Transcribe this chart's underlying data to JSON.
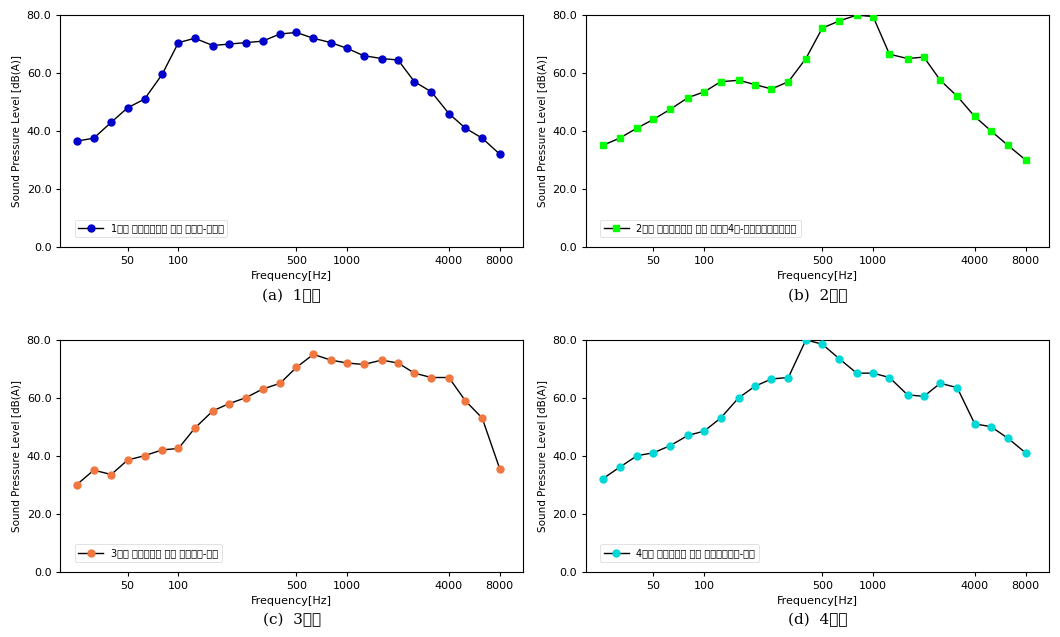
{
  "freq_labels": [
    25,
    31.5,
    40,
    50,
    63,
    80,
    100,
    125,
    160,
    200,
    250,
    315,
    400,
    500,
    630,
    800,
    1000,
    1250,
    1600,
    2000,
    2500,
    3150,
    4000,
    5000,
    6300,
    8000
  ],
  "plot1": {
    "color": "#0000cc",
    "marker": "o",
    "markersize": 5,
    "label": "1호선 비혼잡시간대 하행 청량리-제기동",
    "values": [
      36.5,
      37.5,
      43.0,
      48.0,
      51.0,
      59.5,
      70.5,
      72.0,
      69.5,
      70.0,
      70.5,
      71.0,
      73.5,
      74.0,
      72.0,
      70.5,
      68.5,
      66.0,
      65.0,
      64.5,
      57.0,
      53.5,
      46.0,
      41.0,
      37.5,
      32.0
    ],
    "subtitle": "(a)  1호선"
  },
  "plot2": {
    "color": "#00ff00",
    "marker": "s",
    "markersize": 5,
    "label": "2호선 비혼잡시간대 최선 을지로4가-동대문역사문화공원",
    "values": [
      35.0,
      37.5,
      41.0,
      44.0,
      47.5,
      51.5,
      53.5,
      57.0,
      57.5,
      56.0,
      54.5,
      57.0,
      65.0,
      75.5,
      78.0,
      80.0,
      79.5,
      66.5,
      65.0,
      65.5,
      57.5,
      52.0,
      45.0,
      40.0,
      35.0,
      30.0
    ],
    "subtitle": "(b)  2호선"
  },
  "plot3": {
    "color": "#f07840",
    "marker": "o",
    "markersize": 5,
    "label": "3호선 혼잡시간대 하행 경찰병원-오금",
    "values": [
      30.0,
      35.0,
      33.5,
      38.5,
      40.0,
      42.0,
      42.5,
      49.5,
      55.5,
      58.0,
      60.0,
      63.0,
      65.0,
      70.5,
      75.0,
      73.0,
      72.0,
      71.5,
      73.0,
      72.0,
      68.5,
      67.0,
      67.0,
      59.0,
      53.0,
      35.5
    ],
    "subtitle": "(c)  3호선"
  },
  "plot4": {
    "color": "#00d8d8",
    "marker": "o",
    "markersize": 5,
    "label": "4호선 혼잡시간대 상행 성신여대입구-길음",
    "values": [
      32.0,
      36.0,
      40.0,
      41.0,
      43.5,
      47.0,
      48.5,
      53.0,
      60.0,
      64.0,
      66.5,
      67.0,
      80.0,
      78.5,
      73.5,
      68.5,
      68.5,
      67.0,
      61.0,
      60.5,
      65.0,
      63.5,
      51.0,
      50.0,
      46.0,
      41.0
    ],
    "subtitle": "(d)  4호선"
  },
  "ylabel": "Sound Pressure Level [dB(A)]",
  "xlabel": "Frequency[Hz]",
  "ylim": [
    0.0,
    80.0
  ],
  "yticks": [
    0.0,
    20.0,
    40.0,
    60.0,
    80.0
  ],
  "xtick_positions": [
    50,
    100,
    500,
    1000,
    4000,
    8000
  ],
  "xtick_labels": [
    "50",
    "100",
    "500",
    "1000",
    "4000",
    "8000"
  ],
  "bg_color": "#ffffff",
  "line_color": "#000000"
}
